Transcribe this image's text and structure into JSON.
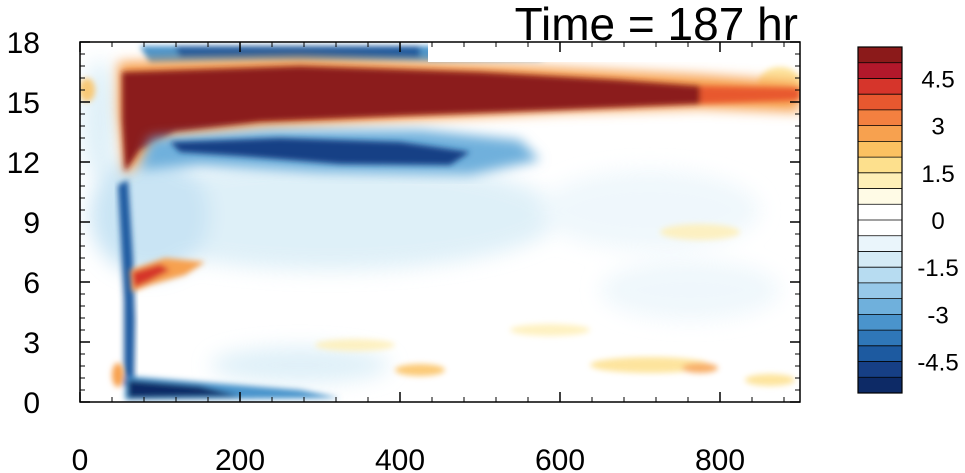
{
  "chart_data": {
    "type": "heatmap",
    "title": "Time = 187 hr",
    "xlabel": "",
    "ylabel": "",
    "xlim": [
      0,
      900
    ],
    "ylim": [
      0,
      18
    ],
    "x_ticks": [
      0,
      200,
      400,
      600,
      800
    ],
    "y_ticks": [
      0,
      3,
      6,
      9,
      12,
      15,
      18
    ],
    "colorbar": {
      "range": [
        -5.5,
        5.5
      ],
      "step": 0.5,
      "tick_labels": [
        "4.5",
        "3",
        "1.5",
        "0",
        "-1.5",
        "-3",
        "-4.5"
      ],
      "tick_values": [
        4.5,
        3,
        1.5,
        0,
        -1.5,
        -3,
        -4.5
      ],
      "colors": [
        "#8b1a1a",
        "#b2182b",
        "#d6352b",
        "#e8582f",
        "#f38040",
        "#f7a14f",
        "#fbc161",
        "#fde08d",
        "#feefb7",
        "#fffbe6",
        "#ffffff",
        "#ffffff",
        "#eaf5fb",
        "#d4ebf6",
        "#b7dcf1",
        "#97c9e9",
        "#6fb0dc",
        "#4a94cc",
        "#2f77b8",
        "#1d5aa0",
        "#163f85",
        "#0d2a66"
      ]
    },
    "features": [
      {
        "name": "upper positive band",
        "x": [
          60,
          880
        ],
        "y_center": 15.2,
        "peak": 5.5
      },
      {
        "name": "upper negative band",
        "x": [
          70,
          560
        ],
        "y_center": 12.3,
        "peak": -5
      },
      {
        "name": "top negative band",
        "x": [
          80,
          430
        ],
        "y_center": 17.1,
        "peak": -4.5
      },
      {
        "name": "surface negative band",
        "x": [
          60,
          300
        ],
        "y_center": 0.5,
        "peak": -5.5
      },
      {
        "name": "vertical negative front",
        "x": [
          50,
          65
        ],
        "y_range": [
          1,
          11
        ],
        "peak": -5
      },
      {
        "name": "mid positive patch",
        "x": [
          65,
          140
        ],
        "y_center": 6.4,
        "peak": 3
      }
    ]
  }
}
